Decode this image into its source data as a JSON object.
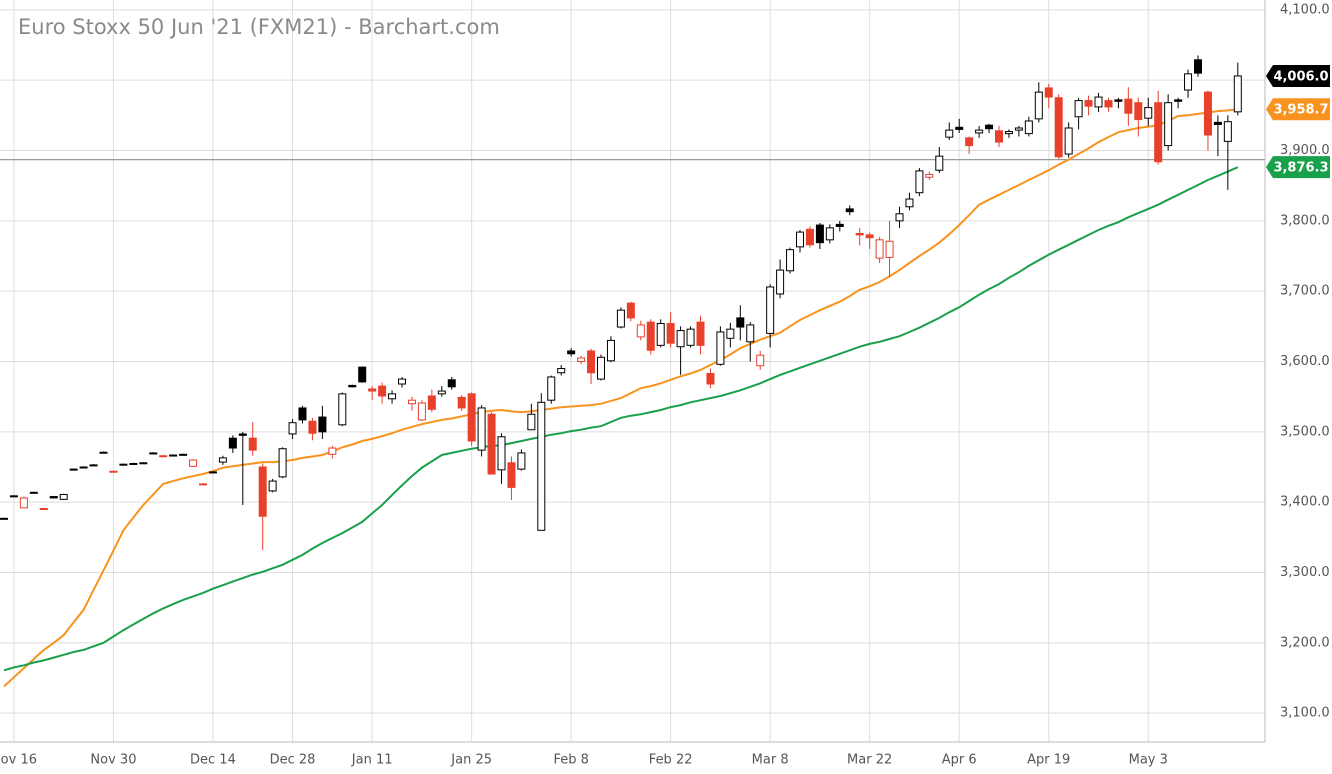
{
  "chart_data": {
    "type": "candlestick",
    "title": "Euro Stoxx 50 Jun '21 (FXM21) - Barchart.com",
    "categories": [
      null,
      "Nov 16",
      null,
      null,
      null,
      null,
      null,
      null,
      null,
      null,
      null,
      "Nov 30",
      null,
      null,
      null,
      null,
      null,
      null,
      null,
      null,
      null,
      "Dec 14",
      null,
      null,
      null,
      null,
      null,
      null,
      null,
      "Dec 28",
      null,
      null,
      null,
      null,
      null,
      null,
      null,
      "Jan 11",
      null,
      null,
      null,
      null,
      null,
      null,
      null,
      null,
      null,
      "Jan 25",
      null,
      null,
      null,
      null,
      null,
      null,
      null,
      null,
      null,
      "Feb 8",
      null,
      null,
      null,
      null,
      null,
      null,
      null,
      null,
      null,
      "Feb 22",
      null,
      null,
      null,
      null,
      null,
      null,
      null,
      null,
      null,
      "Mar 8",
      null,
      null,
      null,
      null,
      null,
      null,
      null,
      null,
      null,
      "Mar 22",
      null,
      null,
      null,
      null,
      null,
      null,
      null,
      null,
      "Apr 6",
      null,
      null,
      null,
      null,
      null,
      null,
      null,
      null,
      "Apr 19",
      null,
      null,
      null,
      null,
      null,
      null,
      null,
      null,
      null,
      "May 3",
      null,
      null,
      null,
      null,
      null,
      null,
      null,
      null,
      null
    ],
    "open": [
      3377,
      3409,
      3392,
      3414,
      3391,
      3408,
      3404,
      3447,
      3449,
      3453,
      3471,
      3444,
      3454,
      3455,
      3456,
      3470,
      3466,
      3467,
      3468,
      3451,
      3426,
      3443,
      3457,
      3491,
      3497,
      3491,
      3450,
      3416,
      3436,
      3497,
      3534,
      3515,
      3521,
      3468,
      3510,
      3566,
      3592,
      3561,
      3565,
      3547,
      3568,
      3540,
      3517,
      3551,
      3554,
      3574,
      3549,
      3554,
      3474,
      3525,
      3446,
      3456,
      3447,
      3503,
      3360,
      3545,
      3584,
      3615,
      3600,
      3615,
      3575,
      3601,
      3649,
      3683,
      3635,
      3656,
      3623,
      3654,
      3621,
      3623,
      3656,
      3583,
      3596,
      3633,
      3662,
      3628,
      3594,
      3640,
      3696,
      3729,
      3763,
      3788,
      3794,
      3773,
      3795,
      3817,
      3782,
      3780,
      3747,
      3748,
      3800,
      3820,
      3840,
      3862,
      3872,
      3919,
      3933,
      3918,
      3925,
      3936,
      3928,
      3924,
      3929,
      3924,
      3945,
      3989,
      3975,
      3895,
      3948,
      3971,
      3962,
      3971,
      3972,
      3973,
      3968,
      3946,
      3968,
      3907,
      3972,
      3986,
      4029,
      3983,
      3940,
      3913,
      3955
    ],
    "high": [
      3378,
      3410,
      3408,
      3415,
      3392,
      3409,
      3412,
      3448,
      3451,
      3454,
      3472,
      3445,
      3455,
      3456,
      3457,
      3471,
      3467,
      3468,
      3469,
      3461,
      3427,
      3444,
      3466,
      3495,
      3500,
      3514,
      3455,
      3433,
      3478,
      3518,
      3537,
      3520,
      3537,
      3480,
      3556,
      3567,
      3593,
      3565,
      3570,
      3559,
      3578,
      3550,
      3545,
      3560,
      3565,
      3578,
      3552,
      3556,
      3538,
      3528,
      3498,
      3465,
      3475,
      3540,
      3555,
      3580,
      3595,
      3619,
      3608,
      3618,
      3610,
      3636,
      3677,
      3685,
      3658,
      3660,
      3660,
      3670,
      3650,
      3650,
      3665,
      3590,
      3650,
      3655,
      3680,
      3656,
      3615,
      3710,
      3745,
      3762,
      3787,
      3792,
      3797,
      3795,
      3800,
      3822,
      3790,
      3783,
      3777,
      3800,
      3820,
      3840,
      3875,
      3870,
      3905,
      3940,
      3945,
      3920,
      3935,
      3938,
      3935,
      3930,
      3935,
      3948,
      3997,
      3995,
      3980,
      3940,
      3975,
      3978,
      3982,
      3975,
      3975,
      3990,
      3975,
      3975,
      3985,
      3980,
      3975,
      4015,
      4035,
      3985,
      3950,
      3950,
      4025
    ],
    "low": [
      3376,
      3408,
      3392,
      3413,
      3389,
      3406,
      3403,
      3446,
      3449,
      3452,
      3470,
      3443,
      3453,
      3454,
      3455,
      3469,
      3465,
      3466,
      3467,
      3450,
      3425,
      3442,
      3453,
      3470,
      3396,
      3466,
      3332,
      3414,
      3434,
      3490,
      3512,
      3488,
      3490,
      3462,
      3508,
      3563,
      3570,
      3545,
      3540,
      3540,
      3563,
      3530,
      3515,
      3528,
      3550,
      3560,
      3530,
      3480,
      3465,
      3440,
      3426,
      3403,
      3445,
      3503,
      3360,
      3540,
      3580,
      3607,
      3596,
      3568,
      3573,
      3599,
      3647,
      3657,
      3630,
      3610,
      3620,
      3620,
      3581,
      3620,
      3610,
      3562,
      3594,
      3620,
      3630,
      3600,
      3588,
      3620,
      3690,
      3725,
      3755,
      3762,
      3760,
      3768,
      3785,
      3808,
      3765,
      3760,
      3740,
      3720,
      3790,
      3815,
      3835,
      3858,
      3868,
      3915,
      3925,
      3895,
      3918,
      3925,
      3905,
      3918,
      3920,
      3920,
      3940,
      3960,
      3888,
      3890,
      3930,
      3950,
      3955,
      3955,
      3960,
      3935,
      3920,
      3935,
      3880,
      3900,
      3960,
      3975,
      4005,
      3900,
      3892,
      3844,
      3950
    ],
    "close": [
      3377,
      3409,
      3406,
      3414,
      3390,
      3406,
      3411,
      3447,
      3450,
      3453,
      3471,
      3444,
      3454,
      3455,
      3456,
      3470,
      3466,
      3467,
      3468,
      3460,
      3426,
      3443,
      3463,
      3477,
      3495,
      3474,
      3380,
      3430,
      3476,
      3513,
      3517,
      3498,
      3500,
      3477,
      3554,
      3564,
      3571,
      3558,
      3551,
      3554,
      3575,
      3545,
      3541,
      3532,
      3558,
      3564,
      3534,
      3487,
      3534,
      3440,
      3493,
      3421,
      3470,
      3525,
      3542,
      3578,
      3590,
      3611,
      3605,
      3584,
      3606,
      3630,
      3673,
      3662,
      3652,
      3616,
      3654,
      3626,
      3644,
      3646,
      3623,
      3568,
      3642,
      3646,
      3649,
      3652,
      3609,
      3706,
      3730,
      3759,
      3784,
      3766,
      3769,
      3790,
      3792,
      3813,
      3780,
      3776,
      3773,
      3771,
      3810,
      3831,
      3871,
      3866,
      3892,
      3929,
      3930,
      3907,
      3929,
      3931,
      3912,
      3927,
      3932,
      3942,
      3983,
      3976,
      3891,
      3932,
      3971,
      3963,
      3976,
      3962,
      3970,
      3953,
      3944,
      3961,
      3884,
      3968,
      3970,
      4009,
      4010,
      3922,
      3937,
      3941,
      4006
    ],
    "last_label": "4,006.0",
    "up_color": "#000000",
    "down_color": "#e8412b",
    "series": [
      {
        "color": "#f7931e",
        "last_label": "3,958.7",
        "values": [
          3138,
          3151,
          3164,
          3177,
          3190,
          3200,
          3211,
          3229,
          3247,
          3275,
          3303,
          3331,
          3360,
          3378,
          3396,
          3411,
          3426,
          3430,
          3434,
          3437,
          3440,
          3444,
          3449,
          3451,
          3453,
          3455,
          3457,
          3457,
          3458,
          3460,
          3463,
          3465,
          3467,
          3472,
          3478,
          3482,
          3487,
          3490,
          3494,
          3498,
          3503,
          3507,
          3511,
          3514,
          3517,
          3519,
          3522,
          3525,
          3528,
          3530,
          3531,
          3529,
          3528,
          3529,
          3531,
          3533,
          3535,
          3536,
          3537,
          3538,
          3540,
          3544,
          3548,
          3555,
          3562,
          3565,
          3569,
          3574,
          3579,
          3583,
          3588,
          3595,
          3602,
          3610,
          3619,
          3625,
          3631,
          3636,
          3641,
          3650,
          3659,
          3666,
          3673,
          3679,
          3685,
          3693,
          3702,
          3707,
          3713,
          3721,
          3730,
          3740,
          3750,
          3759,
          3769,
          3781,
          3794,
          3808,
          3823,
          3830,
          3837,
          3844,
          3851,
          3858,
          3865,
          3872,
          3880,
          3887,
          3895,
          3903,
          3912,
          3919,
          3926,
          3929,
          3932,
          3934,
          3936,
          3942,
          3949,
          3950,
          3952,
          3954,
          3956,
          3957,
          3958.7
        ]
      },
      {
        "color": "#18a04a",
        "last_label": "3,876.3",
        "values": [
          3161,
          3165,
          3168,
          3172,
          3175,
          3179,
          3183,
          3187,
          3190,
          3195,
          3200,
          3209,
          3218,
          3226,
          3234,
          3242,
          3249,
          3255,
          3261,
          3266,
          3271,
          3277,
          3282,
          3287,
          3292,
          3297,
          3301,
          3306,
          3311,
          3318,
          3325,
          3334,
          3342,
          3349,
          3356,
          3364,
          3372,
          3384,
          3396,
          3410,
          3424,
          3437,
          3449,
          3458,
          3467,
          3470,
          3473,
          3476,
          3478,
          3480,
          3481,
          3484,
          3487,
          3490,
          3493,
          3496,
          3498,
          3501,
          3503,
          3506,
          3508,
          3514,
          3520,
          3523,
          3525,
          3528,
          3531,
          3535,
          3538,
          3542,
          3545,
          3548,
          3551,
          3555,
          3559,
          3564,
          3569,
          3575,
          3581,
          3586,
          3591,
          3596,
          3601,
          3606,
          3611,
          3616,
          3621,
          3625,
          3628,
          3632,
          3636,
          3642,
          3648,
          3655,
          3662,
          3670,
          3677,
          3686,
          3695,
          3703,
          3710,
          3719,
          3727,
          3736,
          3744,
          3752,
          3759,
          3766,
          3773,
          3780,
          3787,
          3793,
          3798,
          3805,
          3811,
          3817,
          3823,
          3830,
          3837,
          3844,
          3851,
          3858,
          3864,
          3870,
          3876.3
        ]
      }
    ],
    "price_line": 3887,
    "ylim": [
      3059,
      4114
    ],
    "yticks": [
      {
        "value": 3100,
        "label": "3,100.0"
      },
      {
        "value": 3200,
        "label": "3,200.0"
      },
      {
        "value": 3300,
        "label": "3,300.0"
      },
      {
        "value": 3400,
        "label": "3,400.0"
      },
      {
        "value": 3500,
        "label": "3,500.0"
      },
      {
        "value": 3600,
        "label": "3,600.0"
      },
      {
        "value": 3700,
        "label": "3,700.0"
      },
      {
        "value": 3800,
        "label": "3,800.0"
      },
      {
        "value": 3900,
        "label": "3,900.0"
      },
      {
        "value": 4000,
        "label": "4,000.0"
      },
      {
        "value": 4100,
        "label": "4,100.0"
      }
    ],
    "grid": true
  }
}
